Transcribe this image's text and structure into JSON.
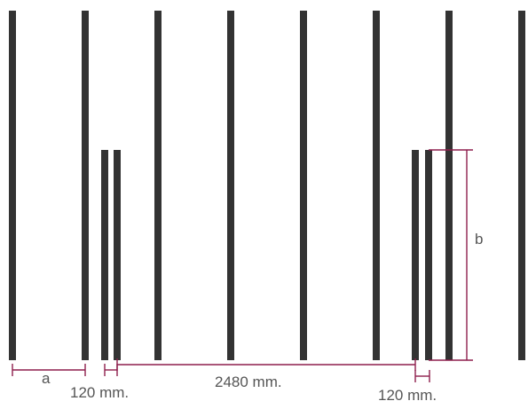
{
  "colors": {
    "bar": "#333333",
    "dimension_line": "#8e1f4d",
    "label": "#555555",
    "background": "#ffffff"
  },
  "labels": {
    "spacing_a": "a",
    "height_b": "b",
    "post_width_left": "120 mm.",
    "gap_span": "2480 mm.",
    "post_width_right": "120 mm."
  }
}
